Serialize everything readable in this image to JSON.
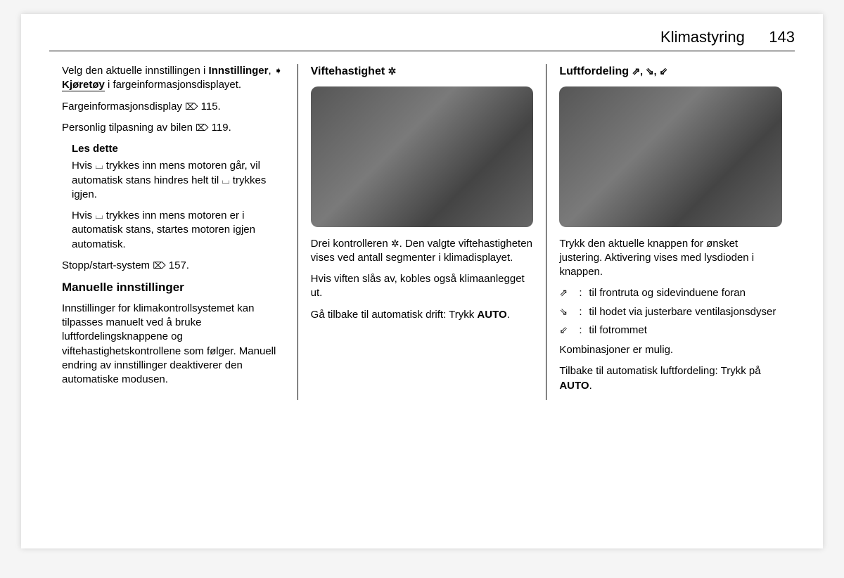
{
  "header": {
    "title": "Klimastyring",
    "page": "143"
  },
  "col1": {
    "p1_a": "Velg den aktuelle innstillingen i ",
    "p1_b": "Innstillinger",
    "p1_sep": ", ",
    "p1_icon": "➧",
    "p1_c": " Kjøretøy",
    "p1_d": " i fargeinformasjonsdisplayet.",
    "p2_a": "Fargeinformasjonsdisplay ",
    "p2_icon": "⌦",
    "p2_b": " 115.",
    "p3_a": "Personlig tilpasning av bilen ",
    "p3_icon": "⌦",
    "p3_b": " 119.",
    "notice_title": "Les dette",
    "notice_p1_a": "Hvis ",
    "notice_icon1": "⌴",
    "notice_p1_b": " trykkes inn mens motoren går, vil automatisk stans hindres helt til ",
    "notice_icon2": "⌴",
    "notice_p1_c": " trykkes igjen.",
    "notice_p2_a": "Hvis ",
    "notice_icon3": "⌴",
    "notice_p2_b": " trykkes inn mens motoren er i automatisk stans, startes motoren igjen automatisk.",
    "p4_a": "Stopp/start-system ",
    "p4_icon": "⌦",
    "p4_b": " 157.",
    "subhead": "Manuelle innstillinger",
    "p5": "Innstillinger for klimakontrollsystemet kan tilpasses manuelt ved å bruke luftfordelingsknappene og viftehastighetskontrollene som følger. Manuell endring av innstillinger deaktiverer den automatiske modusen."
  },
  "col2": {
    "head_a": "Viftehastighet ",
    "head_icon": "✲",
    "p1_a": "Drei kontrolleren ",
    "p1_icon": "✲",
    "p1_b": ". Den valgte viftehastigheten vises ved antall segmenter i klimadisplayet.",
    "p2": "Hvis viften slås av, kobles også klimaanlegget ut.",
    "p3_a": "Gå tilbake til automatisk drift: Trykk ",
    "p3_b": "AUTO",
    "p3_c": "."
  },
  "col3": {
    "head_a": "Luftfordeling ",
    "head_icons": "⇗, ⇘, ⇙",
    "p1": "Trykk den aktuelle knappen for ønsket justering. Aktivering vises med lysdioden i knappen.",
    "def1_sym": "⇗",
    "def1_txt": "til frontruta og sidevinduene foran",
    "def2_sym": "⇘",
    "def2_txt": "til hodet via justerbare ventilasjonsdyser",
    "def3_sym": "⇙",
    "def3_txt": "til fotrommet",
    "p2": "Kombinasjoner er mulig.",
    "p3_a": "Tilbake til automatisk luftfordeling: Trykk på ",
    "p3_b": "AUTO",
    "p3_c": "."
  },
  "image_alt": {
    "col2": "Photo of climate control panel with rotary fan speed knob highlighted",
    "col3": "Photo of climate control panel with three air distribution buttons highlighted"
  }
}
